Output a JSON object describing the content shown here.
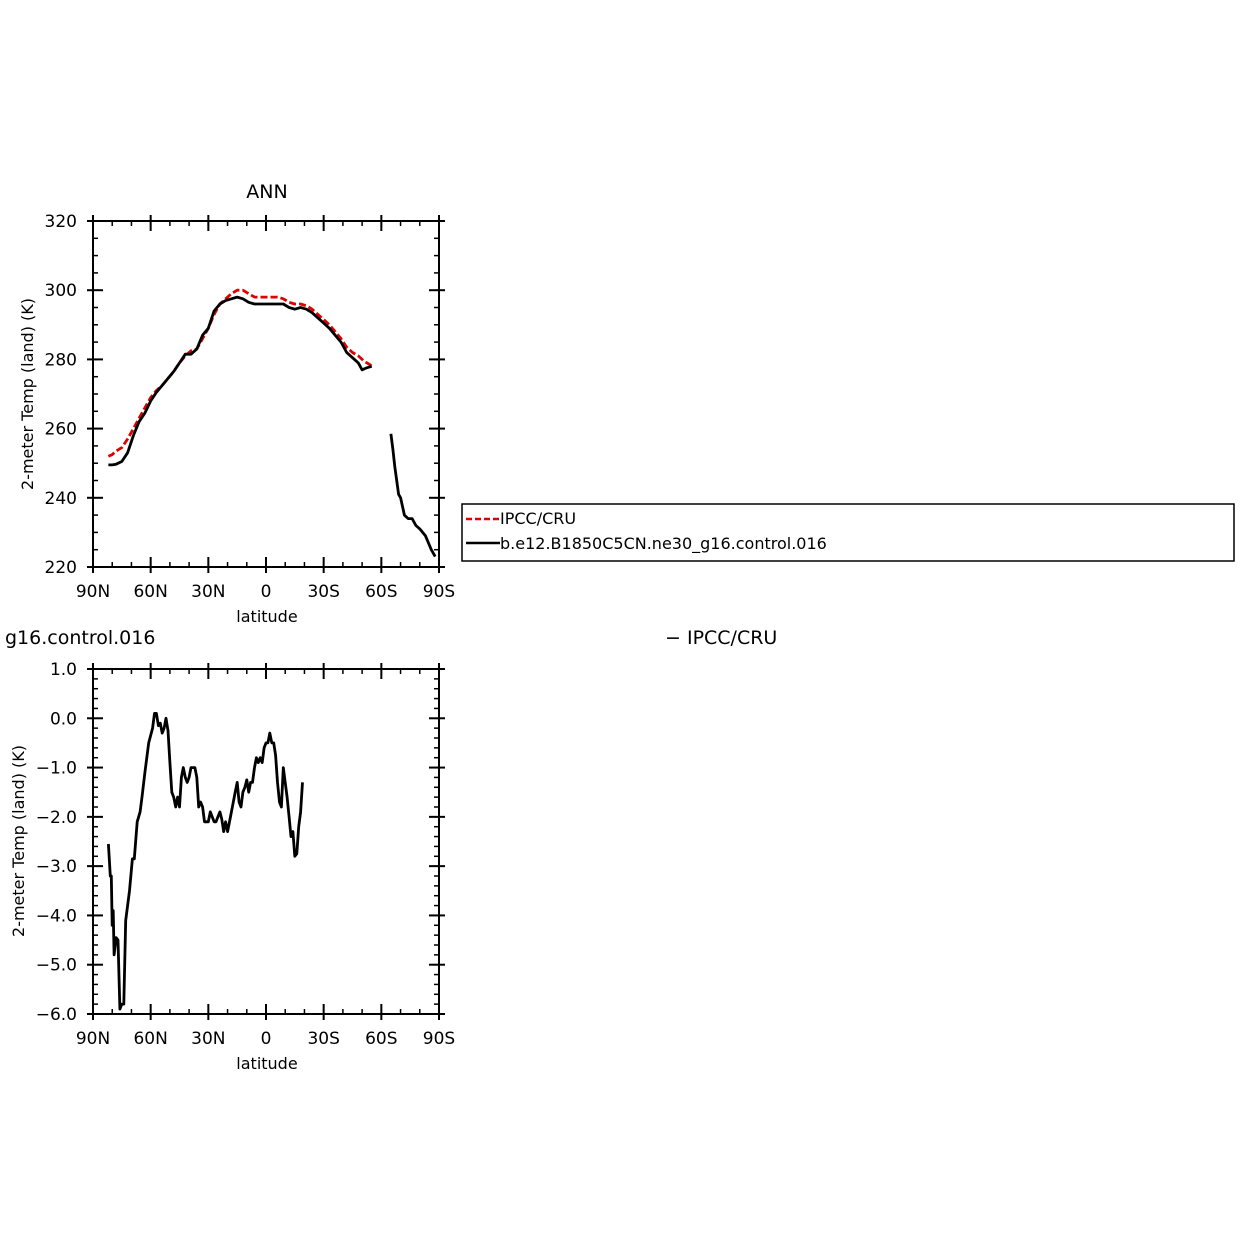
{
  "chart_data": [
    {
      "type": "line",
      "title": "ANN",
      "xlabel": "latitude",
      "ylabel": "2-meter Temp (land) (K)",
      "xlim": [
        -90,
        90
      ],
      "ylim": [
        220,
        320
      ],
      "x_direction": "north-to-south",
      "xticks": [
        {
          "value": -90,
          "label": "90N"
        },
        {
          "value": -60,
          "label": "60N"
        },
        {
          "value": -30,
          "label": "30N"
        },
        {
          "value": 0,
          "label": "0"
        },
        {
          "value": 30,
          "label": "30S"
        },
        {
          "value": 60,
          "label": "60S"
        },
        {
          "value": 90,
          "label": "90S"
        }
      ],
      "yticks": [
        {
          "value": 220,
          "label": "220"
        },
        {
          "value": 240,
          "label": "240"
        },
        {
          "value": 260,
          "label": "260"
        },
        {
          "value": 280,
          "label": "280"
        },
        {
          "value": 300,
          "label": "300"
        },
        {
          "value": 320,
          "label": "320"
        }
      ],
      "legend": {
        "placement": "right-outside",
        "entries": [
          "IPCC/CRU",
          "b.e12.B1850C5CN.ne30_g16.control.016"
        ]
      },
      "series": [
        {
          "name": "IPCC/CRU",
          "color": "#e00000",
          "dash": true,
          "segments": [
            [
              [
                -82,
                252
              ],
              [
                -80,
                252.5
              ],
              [
                -78,
                253.5
              ],
              [
                -75,
                254.5
              ],
              [
                -72,
                257
              ],
              [
                -69,
                260
              ],
              [
                -66,
                263
              ],
              [
                -63,
                266
              ],
              [
                -60,
                269
              ],
              [
                -57,
                271
              ],
              [
                -54,
                272.5
              ],
              [
                -51,
                274.5
              ],
              [
                -48,
                276.5
              ],
              [
                -45,
                279
              ],
              [
                -42,
                281
              ],
              [
                -39,
                282.5
              ],
              [
                -36,
                283
              ],
              [
                -33,
                286
              ],
              [
                -30,
                289
              ],
              [
                -27,
                293
              ],
              [
                -24,
                296
              ],
              [
                -21,
                297.5
              ],
              [
                -18,
                299
              ],
              [
                -15,
                300
              ],
              [
                -12,
                300
              ],
              [
                -9,
                299
              ],
              [
                -6,
                298
              ],
              [
                -3,
                298
              ],
              [
                0,
                298
              ],
              [
                3,
                298
              ],
              [
                6,
                298
              ],
              [
                9,
                297.5
              ],
              [
                12,
                296.5
              ],
              [
                15,
                296
              ],
              [
                18,
                296
              ],
              [
                21,
                295.5
              ],
              [
                24,
                294.5
              ],
              [
                27,
                293
              ],
              [
                30,
                291.5
              ],
              [
                33,
                290
              ],
              [
                36,
                288
              ],
              [
                39,
                286
              ],
              [
                42,
                283.5
              ],
              [
                45,
                282
              ],
              [
                48,
                281
              ],
              [
                51,
                279.5
              ],
              [
                54,
                278.5
              ],
              [
                55,
                278
              ]
            ]
          ]
        },
        {
          "name": "b.e12.B1850C5CN.ne30_g16.control.016",
          "color": "#000000",
          "dash": false,
          "segments": [
            [
              [
                -82,
                249.5
              ],
              [
                -80,
                249.5
              ],
              [
                -78,
                249.7
              ],
              [
                -75,
                250.5
              ],
              [
                -72,
                253
              ],
              [
                -69,
                258
              ],
              [
                -66,
                262
              ],
              [
                -63,
                264.5
              ],
              [
                -60,
                268
              ],
              [
                -57,
                270.5
              ],
              [
                -54,
                272.5
              ],
              [
                -51,
                274.5
              ],
              [
                -48,
                276.5
              ],
              [
                -45,
                279
              ],
              [
                -42,
                281.5
              ],
              [
                -39,
                281.5
              ],
              [
                -36,
                283
              ],
              [
                -33,
                287
              ],
              [
                -30,
                289
              ],
              [
                -27,
                294
              ],
              [
                -24,
                296
              ],
              [
                -21,
                297
              ],
              [
                -18,
                297.5
              ],
              [
                -15,
                298
              ],
              [
                -12,
                297.5
              ],
              [
                -9,
                296.5
              ],
              [
                -6,
                296
              ],
              [
                -3,
                296
              ],
              [
                0,
                296
              ],
              [
                3,
                296
              ],
              [
                6,
                296
              ],
              [
                9,
                296
              ],
              [
                12,
                295
              ],
              [
                15,
                294.5
              ],
              [
                18,
                295
              ],
              [
                21,
                294.5
              ],
              [
                24,
                293.5
              ],
              [
                27,
                292
              ],
              [
                30,
                290.5
              ],
              [
                33,
                289
              ],
              [
                36,
                287
              ],
              [
                39,
                285
              ],
              [
                42,
                282
              ],
              [
                45,
                280.5
              ],
              [
                48,
                279
              ],
              [
                50,
                277
              ],
              [
                52,
                277.5
              ],
              [
                55,
                278
              ]
            ],
            [
              [
                65,
                258.5
              ],
              [
                66,
                254
              ],
              [
                67,
                249
              ],
              [
                68,
                245
              ],
              [
                69,
                241
              ],
              [
                70,
                240
              ],
              [
                71,
                237.5
              ],
              [
                72,
                235
              ],
              [
                74,
                234
              ],
              [
                76,
                234
              ],
              [
                78,
                232
              ],
              [
                80,
                231
              ],
              [
                83,
                229
              ],
              [
                86,
                225
              ],
              [
                88,
                223
              ]
            ]
          ]
        }
      ]
    },
    {
      "type": "line",
      "title": "",
      "xlabel": "latitude",
      "ylabel": "2-meter Temp (land) (K)",
      "xlim": [
        -90,
        90
      ],
      "ylim": [
        -6.0,
        1.0
      ],
      "x_direction": "north-to-south",
      "xticks": [
        {
          "value": -90,
          "label": "90N"
        },
        {
          "value": -60,
          "label": "60N"
        },
        {
          "value": -30,
          "label": "30N"
        },
        {
          "value": 0,
          "label": "0"
        },
        {
          "value": 30,
          "label": "30S"
        },
        {
          "value": 60,
          "label": "60S"
        },
        {
          "value": 90,
          "label": "90S"
        }
      ],
      "yticks": [
        {
          "value": 1.0,
          "label": "1.0"
        },
        {
          "value": 0.0,
          "label": "0.0"
        },
        {
          "value": -1.0,
          "label": "−1.0"
        },
        {
          "value": -2.0,
          "label": "−2.0"
        },
        {
          "value": -3.0,
          "label": "−3.0"
        },
        {
          "value": -4.0,
          "label": "−4.0"
        },
        {
          "value": -5.0,
          "label": "−5.0"
        },
        {
          "value": -6.0,
          "label": "−6.0"
        }
      ],
      "left_title": "g16.control.016",
      "right_title": "− IPCC/CRU",
      "series": [
        {
          "name": "",
          "color": "#000000",
          "dash": false,
          "segments": [
            [
              [
                -82,
                -2.55
              ],
              [
                -81,
                -3.2
              ],
              [
                -80.5,
                -3.2
              ],
              [
                -80,
                -4.2
              ],
              [
                -79.5,
                -3.9
              ],
              [
                -79,
                -4.8
              ],
              [
                -78,
                -4.45
              ],
              [
                -77,
                -4.5
              ],
              [
                -76,
                -5.9
              ],
              [
                -75,
                -5.8
              ],
              [
                -74,
                -5.8
              ],
              [
                -73,
                -4.1
              ],
              [
                -71,
                -3.5
              ],
              [
                -69.5,
                -2.85
              ],
              [
                -68.5,
                -2.85
              ],
              [
                -67,
                -2.1
              ],
              [
                -65.5,
                -1.9
              ],
              [
                -64.5,
                -1.6
              ],
              [
                -63,
                -1.1
              ],
              [
                -61,
                -0.5
              ],
              [
                -59,
                -0.2
              ],
              [
                -58,
                0.1
              ],
              [
                -57,
                0.1
              ],
              [
                -56,
                -0.15
              ],
              [
                -55,
                -0.1
              ],
              [
                -54,
                -0.3
              ],
              [
                -53,
                -0.2
              ],
              [
                -52,
                0.0
              ],
              [
                -51,
                -0.25
              ],
              [
                -50,
                -0.9
              ],
              [
                -49,
                -1.5
              ],
              [
                -48,
                -1.6
              ],
              [
                -47,
                -1.8
              ],
              [
                -46,
                -1.6
              ],
              [
                -45,
                -1.8
              ],
              [
                -44,
                -1.2
              ],
              [
                -43,
                -1.0
              ],
              [
                -42,
                -1.2
              ],
              [
                -41,
                -1.3
              ],
              [
                -40,
                -1.2
              ],
              [
                -39,
                -1.0
              ],
              [
                -37,
                -1.0
              ],
              [
                -36,
                -1.2
              ],
              [
                -35,
                -1.8
              ],
              [
                -34,
                -1.7
              ],
              [
                -33,
                -1.8
              ],
              [
                -32,
                -2.1
              ],
              [
                -30,
                -2.1
              ],
              [
                -29,
                -1.9
              ],
              [
                -27,
                -2.1
              ],
              [
                -26,
                -2.1
              ],
              [
                -25,
                -2.0
              ],
              [
                -24,
                -1.9
              ],
              [
                -23,
                -2.05
              ],
              [
                -22,
                -2.3
              ],
              [
                -21,
                -2.1
              ],
              [
                -20,
                -2.3
              ],
              [
                -19,
                -2.1
              ],
              [
                -17,
                -1.7
              ],
              [
                -16,
                -1.5
              ],
              [
                -15,
                -1.3
              ],
              [
                -14,
                -1.7
              ],
              [
                -13,
                -1.8
              ],
              [
                -12,
                -1.5
              ],
              [
                -11,
                -1.4
              ],
              [
                -10,
                -1.25
              ],
              [
                -9,
                -1.5
              ],
              [
                -8,
                -1.3
              ],
              [
                -7,
                -1.3
              ],
              [
                -6,
                -1.0
              ],
              [
                -5,
                -0.8
              ],
              [
                -4,
                -0.9
              ],
              [
                -3,
                -0.8
              ],
              [
                -2,
                -0.9
              ],
              [
                -1,
                -0.6
              ],
              [
                0,
                -0.5
              ],
              [
                1,
                -0.5
              ],
              [
                2,
                -0.3
              ],
              [
                3,
                -0.5
              ],
              [
                4,
                -0.5
              ],
              [
                5,
                -0.75
              ],
              [
                6,
                -1.3
              ],
              [
                7,
                -1.7
              ],
              [
                8,
                -1.8
              ],
              [
                9,
                -1.0
              ],
              [
                10,
                -1.3
              ],
              [
                11,
                -1.6
              ],
              [
                12,
                -2.0
              ],
              [
                13,
                -2.4
              ],
              [
                14,
                -2.3
              ],
              [
                15,
                -2.8
              ],
              [
                16,
                -2.75
              ],
              [
                17,
                -2.2
              ],
              [
                18,
                -1.9
              ],
              [
                19,
                -1.3
              ]
            ]
          ]
        }
      ]
    }
  ]
}
